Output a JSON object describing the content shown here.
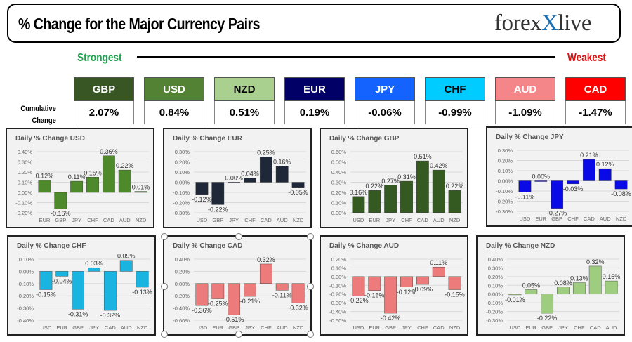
{
  "header": {
    "title": "% Change for the Major Currency Pairs",
    "logo_text": "forexlive"
  },
  "scale": {
    "strongest": "Strongest",
    "weakest": "Weakest"
  },
  "cumulative_label": "Cumulative Change",
  "tiles": [
    {
      "currency": "GBP",
      "value": "2.07%",
      "color": "#375623",
      "text_color": "#ffffff"
    },
    {
      "currency": "USD",
      "value": "0.84%",
      "color": "#548235",
      "text_color": "#ffffff"
    },
    {
      "currency": "NZD",
      "value": "0.51%",
      "color": "#a9d08e",
      "text_color": "#000000"
    },
    {
      "currency": "EUR",
      "value": "0.19%",
      "color": "#000066",
      "text_color": "#ffffff"
    },
    {
      "currency": "JPY",
      "value": "-0.06%",
      "color": "#1463ff",
      "text_color": "#ffffff"
    },
    {
      "currency": "CHF",
      "value": "-0.99%",
      "color": "#00ccff",
      "text_color": "#000000"
    },
    {
      "currency": "AUD",
      "value": "-1.09%",
      "color": "#f4868a",
      "text_color": "#ffffff"
    },
    {
      "currency": "CAD",
      "value": "-1.47%",
      "color": "#ff0000",
      "text_color": "#ffffff"
    }
  ],
  "chart_data": [
    {
      "type": "bar",
      "title": "Daily % Change USD",
      "categories": [
        "EUR",
        "GBP",
        "JPY",
        "CHF",
        "CAD",
        "AUD",
        "NZD"
      ],
      "values": [
        0.12,
        -0.16,
        0.11,
        0.15,
        0.36,
        0.22,
        0.01
      ],
      "ylim": [
        -0.2,
        0.4
      ],
      "ytick_step": 0.1,
      "grid": true,
      "color": "#4e8a2b"
    },
    {
      "type": "bar",
      "title": "Daily % Change EUR",
      "categories": [
        "USD",
        "GBP",
        "JPY",
        "CHF",
        "CAD",
        "AUD",
        "NZD"
      ],
      "values": [
        -0.12,
        -0.22,
        0.0,
        0.04,
        0.25,
        0.16,
        -0.05
      ],
      "ylim": [
        -0.3,
        0.3
      ],
      "ytick_step": 0.1,
      "grid": true,
      "color": "#1f2838"
    },
    {
      "type": "bar",
      "title": "Daily % Change GBP",
      "categories": [
        "USD",
        "EUR",
        "JPY",
        "CHF",
        "CAD",
        "AUD",
        "NZD"
      ],
      "values": [
        0.16,
        0.22,
        0.27,
        0.31,
        0.51,
        0.42,
        0.22
      ],
      "ylim": [
        0,
        0.6
      ],
      "ytick_step": 0.1,
      "grid": true,
      "color": "#345a22"
    },
    {
      "type": "bar",
      "title": "Daily % Change JPY",
      "categories": [
        "USD",
        "EUR",
        "GBP",
        "CHF",
        "CAD",
        "AUD",
        "NZD"
      ],
      "values": [
        -0.11,
        0.0,
        -0.27,
        -0.03,
        0.21,
        0.12,
        -0.08
      ],
      "ylim": [
        -0.3,
        0.3
      ],
      "ytick_step": 0.1,
      "grid": true,
      "color": "#0a0ae6"
    },
    {
      "type": "bar",
      "title": "Daily % Change CHF",
      "categories": [
        "USD",
        "EUR",
        "GBP",
        "JPY",
        "CAD",
        "AUD",
        "NZD"
      ],
      "values": [
        -0.15,
        -0.04,
        -0.31,
        0.03,
        -0.32,
        0.09,
        -0.13
      ],
      "ylim": [
        -0.4,
        0.1
      ],
      "ytick_step": 0.1,
      "grid": true,
      "color": "#1ab4e0"
    },
    {
      "type": "bar",
      "title": "Daily % Change CAD",
      "categories": [
        "USD",
        "EUR",
        "GBP",
        "JPY",
        "CHF",
        "AUD",
        "NZD"
      ],
      "values": [
        -0.36,
        -0.25,
        -0.51,
        -0.21,
        0.32,
        -0.11,
        -0.32
      ],
      "ylim": [
        -0.6,
        0.4
      ],
      "ytick_step": 0.2,
      "grid": true,
      "color": "#ee7b7b"
    },
    {
      "type": "bar",
      "title": "Daily % Change AUD",
      "categories": [
        "USD",
        "EUR",
        "GBP",
        "JPY",
        "CHF",
        "CAD",
        "NZD"
      ],
      "values": [
        -0.22,
        -0.16,
        -0.42,
        -0.12,
        -0.09,
        0.11,
        -0.15
      ],
      "ylim": [
        -0.5,
        0.2
      ],
      "ytick_step": 0.1,
      "grid": true,
      "color": "#ee7b7b"
    },
    {
      "type": "bar",
      "title": "Daily % Change NZD",
      "categories": [
        "USD",
        "EUR",
        "GBP",
        "JPY",
        "CHF",
        "CAD",
        "AUD"
      ],
      "values": [
        -0.01,
        0.05,
        -0.22,
        0.08,
        0.13,
        0.32,
        0.15
      ],
      "ylim": [
        -0.3,
        0.4
      ],
      "ytick_step": 0.1,
      "grid": true,
      "color": "#9fcd7f"
    }
  ]
}
